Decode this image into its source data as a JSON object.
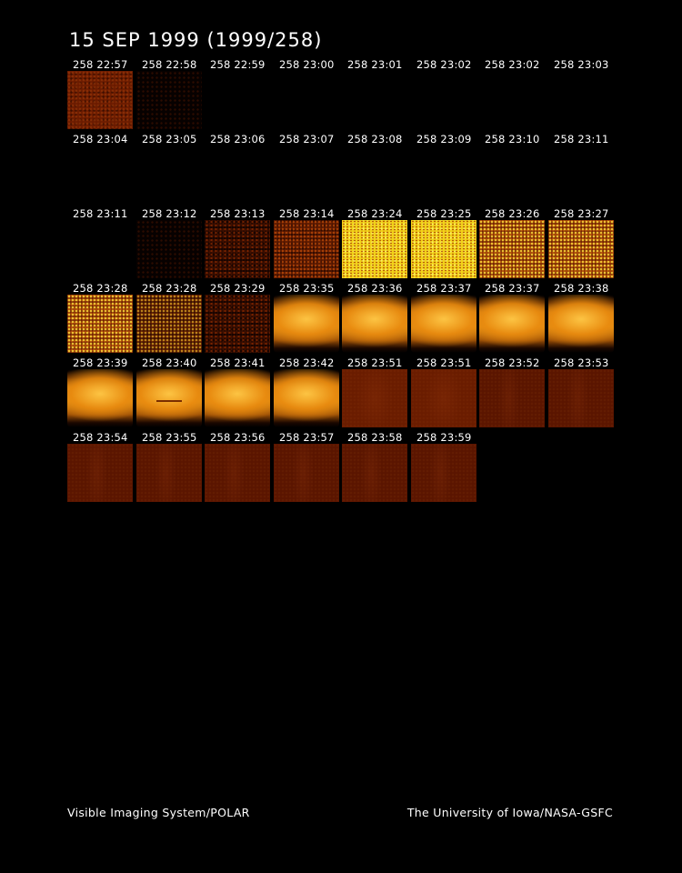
{
  "title": "15 SEP 1999  (1999/258)",
  "footer": {
    "left": "Visible Imaging System/POLAR",
    "right": "The University of Iowa/NASA-GSFC"
  },
  "rows": [
    [
      {
        "label": "258 22:57",
        "tone": "red"
      },
      {
        "label": "258 22:58",
        "tone": "faint"
      },
      {
        "label": "258 22:59",
        "tone": "none"
      },
      {
        "label": "258 23:00",
        "tone": "none"
      },
      {
        "label": "258 23:01",
        "tone": "none"
      },
      {
        "label": "258 23:02",
        "tone": "none"
      },
      {
        "label": "258 23:02",
        "tone": "none"
      },
      {
        "label": "258 23:03",
        "tone": "none"
      }
    ],
    [
      {
        "label": "258 23:04",
        "tone": "none"
      },
      {
        "label": "258 23:05",
        "tone": "none"
      },
      {
        "label": "258 23:06",
        "tone": "none"
      },
      {
        "label": "258 23:07",
        "tone": "none"
      },
      {
        "label": "258 23:08",
        "tone": "none"
      },
      {
        "label": "258 23:09",
        "tone": "none"
      },
      {
        "label": "258 23:10",
        "tone": "none"
      },
      {
        "label": "258 23:11",
        "tone": "none"
      }
    ],
    [
      {
        "label": "258 23:11",
        "tone": "none"
      },
      {
        "label": "258 23:12",
        "tone": "faint"
      },
      {
        "label": "258 23:13",
        "tone": "darknoise"
      },
      {
        "label": "258 23:14",
        "tone": "midnoise"
      },
      {
        "label": "258 23:24",
        "tone": "yellow"
      },
      {
        "label": "258 23:25",
        "tone": "yellow"
      },
      {
        "label": "258 23:26",
        "tone": "mixed"
      },
      {
        "label": "258 23:27",
        "tone": "mixed"
      }
    ],
    [
      {
        "label": "258 23:28",
        "tone": "mixed"
      },
      {
        "label": "258 23:28",
        "tone": "mixed-dark"
      },
      {
        "label": "258 23:29",
        "tone": "darknoise"
      },
      {
        "label": "258 23:35",
        "tone": "glow"
      },
      {
        "label": "258 23:36",
        "tone": "glow"
      },
      {
        "label": "258 23:37",
        "tone": "glow"
      },
      {
        "label": "258 23:37",
        "tone": "glow"
      },
      {
        "label": "258 23:38",
        "tone": "glow"
      }
    ],
    [
      {
        "label": "258 23:39",
        "tone": "glow"
      },
      {
        "label": "258 23:40",
        "tone": "glow-bar"
      },
      {
        "label": "258 23:41",
        "tone": "glow"
      },
      {
        "label": "258 23:42",
        "tone": "glow"
      },
      {
        "label": "258 23:51",
        "tone": "dull"
      },
      {
        "label": "258 23:51",
        "tone": "dull"
      },
      {
        "label": "258 23:52",
        "tone": "dark-red"
      },
      {
        "label": "258 23:53",
        "tone": "dark-red"
      }
    ],
    [
      {
        "label": "258 23:54",
        "tone": "dark-red"
      },
      {
        "label": "258 23:55",
        "tone": "dark-red"
      },
      {
        "label": "258 23:56",
        "tone": "dark-red"
      },
      {
        "label": "258 23:57",
        "tone": "dark-red"
      },
      {
        "label": "258 23:58",
        "tone": "dark-red"
      },
      {
        "label": "258 23:59",
        "tone": "dark-red"
      }
    ]
  ]
}
